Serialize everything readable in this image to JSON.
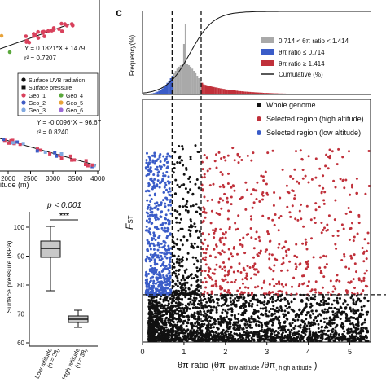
{
  "panel_letter": "c",
  "colors": {
    "black": "#111111",
    "red": "#c0303a",
    "blue": "#3a5cc8",
    "gray": "#a9a9a9",
    "geo_red": "#d9415c",
    "geo_blue": "#3e5bc4",
    "geo_green": "#5aa83c",
    "geo_orange": "#e8a33a",
    "geo_lightblue": "#80a8e0",
    "geo_purple": "#9c6ad6",
    "box_fill": "#c8c8c8"
  },
  "left_top": {
    "eq1": "Y = 0.1821*X + 1479",
    "r2_1": "r² = 0.7207",
    "eq2": "Y = -0.0096*X + 96.67",
    "r2_2": "r² = 0.8240",
    "legend": {
      "uvb": "Surface UVB radiation",
      "pressure": "Surface pressure",
      "geo": [
        "Geo_1",
        "Geo_2",
        "Geo_3",
        "Geo_4",
        "Geo_5",
        "Geo_6"
      ]
    },
    "x_ticks": [
      "2000",
      "2500",
      "3000",
      "3500",
      "4000"
    ],
    "xlabel_partial": "itude (m)"
  },
  "left_bottom": {
    "pvalue": "p < 0.001",
    "stars": "***",
    "ylabel": "Surface pressure (KPa)",
    "y_ticks": [
      "100",
      "90",
      "80",
      "70",
      "60"
    ],
    "groups": [
      {
        "label": "Low altitude",
        "n": "(n = 28)"
      },
      {
        "label": "High altitude",
        "n": "(n = 38)"
      }
    ]
  },
  "chart_data": [
    {
      "type": "bar",
      "panel": "top-histogram",
      "ylabel": "Frequency(%)",
      "legend": [
        "0.714 < θπ ratio < 1.414",
        "θπ ratio ≤ 0.714",
        "θπ ratio ≥ 1.414",
        "Cumulative (%)"
      ],
      "legend_placement": "right",
      "threshold_lines": [
        0.714,
        1.414
      ],
      "xlim": [
        0,
        5.5
      ]
    },
    {
      "type": "scatter",
      "panel": "main-scatter",
      "title": "",
      "xlabel_main": "θπ ratio (θπ",
      "xlabel_sub1": ", low altitude",
      "xlabel_mid": " /θπ",
      "xlabel_sub2": ", high altitude",
      "xlabel_end": " )",
      "ylabel": "F",
      "ylabel_sub": "ST",
      "xlim": [
        0,
        5.5
      ],
      "ylim": [
        0,
        1.0
      ],
      "x_ticks": [
        "0",
        "1",
        "2",
        "3",
        "4",
        "5"
      ],
      "threshold_x": [
        0.714,
        1.414
      ],
      "threshold_y": 0.195,
      "legend": [
        {
          "name": "Whole genome",
          "color": "#111111"
        },
        {
          "name": "Selected region (high altitude)",
          "color": "#c0303a"
        },
        {
          "name": "Selected region (low altitude)",
          "color": "#3a5cc8"
        }
      ],
      "legend_placement": "top-right"
    }
  ]
}
